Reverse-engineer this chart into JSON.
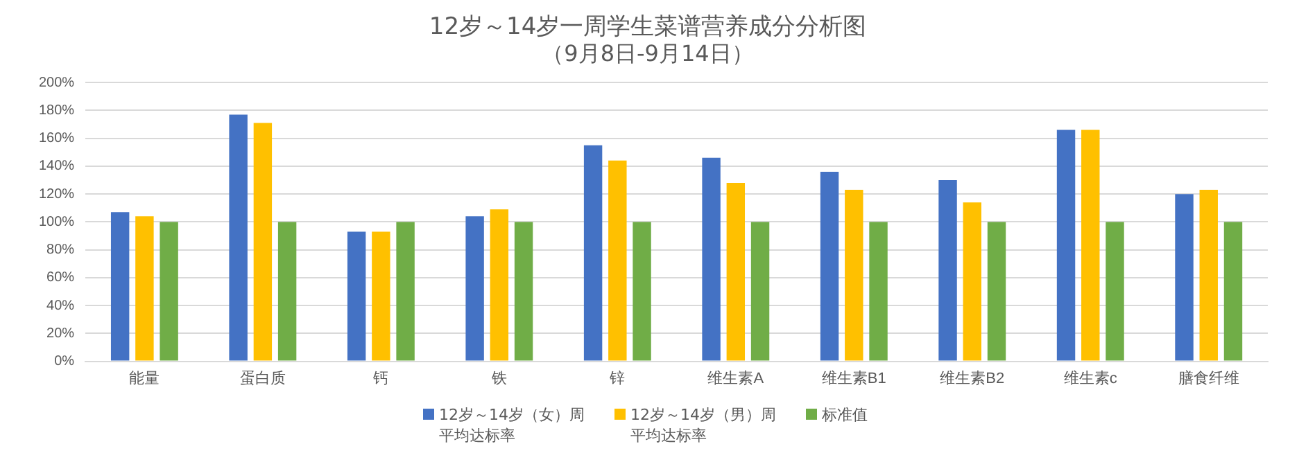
{
  "chart_data": {
    "type": "bar",
    "title": "12岁～14岁一周学生菜谱营养成分分析图",
    "subtitle": "（9月8日-9月14日）",
    "categories": [
      "能量",
      "蛋白质",
      "钙",
      "铁",
      "锌",
      "维生素A",
      "维生素B1",
      "维生素B2",
      "维生素c",
      "膳食纤维"
    ],
    "series": [
      {
        "name": "12岁～14岁（女）周平均达标率",
        "color": "#4472c4",
        "values": [
          107,
          177,
          93,
          104,
          155,
          146,
          136,
          130,
          166,
          120
        ]
      },
      {
        "name": "12岁～14岁（男）周平均达标率",
        "color": "#ffc000",
        "values": [
          104,
          171,
          93,
          109,
          144,
          128,
          123,
          114,
          166,
          123
        ]
      },
      {
        "name": "标准值",
        "color": "#70ad47",
        "values": [
          100,
          100,
          100,
          100,
          100,
          100,
          100,
          100,
          100,
          100
        ]
      }
    ],
    "ylim": [
      0,
      200
    ],
    "yticks": [
      {
        "value": 0,
        "label": "0%"
      },
      {
        "value": 20,
        "label": "20%"
      },
      {
        "value": 40,
        "label": "40%"
      },
      {
        "value": 60,
        "label": "60%"
      },
      {
        "value": 80,
        "label": "80%"
      },
      {
        "value": 100,
        "label": "100%"
      },
      {
        "value": 120,
        "label": "120%"
      },
      {
        "value": 140,
        "label": "140%"
      },
      {
        "value": 160,
        "label": "160%"
      },
      {
        "value": 180,
        "label": "180%"
      },
      {
        "value": 200,
        "label": "200%"
      }
    ],
    "grid": "y",
    "legend": "bottom"
  }
}
